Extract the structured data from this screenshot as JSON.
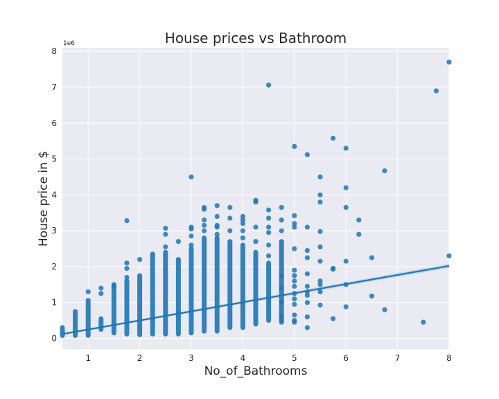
{
  "chart_data": {
    "type": "scatter",
    "title": "House prices vs Bathroom",
    "xlabel": "No_of_Bathrooms",
    "ylabel": "House price in $",
    "y_offset_label": "1e6",
    "xlim": [
      0.5,
      8
    ],
    "ylim": [
      -0.3,
      8.1
    ],
    "y_scale_note": "values in units of 1e6 dollars",
    "grid": true,
    "style": "seaborn darkgrid",
    "colors": {
      "points": "#1f77b4",
      "line": "#1f77b4",
      "background": "#eaeaf2",
      "grid": "#ffffff"
    },
    "xticks": [
      "1",
      "2",
      "3",
      "4",
      "5",
      "6",
      "7",
      "8"
    ],
    "yticks": [
      "0",
      "1",
      "2",
      "3",
      "4",
      "5",
      "6",
      "7",
      "8"
    ],
    "regression_line": {
      "x": [
        0.5,
        8
      ],
      "y": [
        0.12,
        2.02
      ]
    },
    "columns": [
      {
        "x": 0.5,
        "ymin": 0.08,
        "ymax": 0.3
      },
      {
        "x": 0.75,
        "ymin": 0.08,
        "ymax": 0.75
      },
      {
        "x": 1.0,
        "ymin": 0.08,
        "ymax": 1.06
      },
      {
        "x": 1.25,
        "ymin": 0.25,
        "ymax": 0.55
      },
      {
        "x": 1.5,
        "ymin": 0.15,
        "ymax": 1.5
      },
      {
        "x": 1.75,
        "ymin": 0.12,
        "ymax": 1.6
      },
      {
        "x": 2.0,
        "ymin": 0.1,
        "ymax": 1.75
      },
      {
        "x": 2.25,
        "ymin": 0.12,
        "ymax": 2.35
      },
      {
        "x": 2.5,
        "ymin": 0.12,
        "ymax": 2.4
      },
      {
        "x": 2.75,
        "ymin": 0.12,
        "ymax": 2.2
      },
      {
        "x": 3.0,
        "ymin": 0.15,
        "ymax": 2.5
      },
      {
        "x": 3.25,
        "ymin": 0.2,
        "ymax": 2.8
      },
      {
        "x": 3.5,
        "ymin": 0.2,
        "ymax": 2.8
      },
      {
        "x": 3.75,
        "ymin": 0.3,
        "ymax": 2.7
      },
      {
        "x": 4.0,
        "ymin": 0.3,
        "ymax": 2.6
      },
      {
        "x": 4.25,
        "ymin": 0.4,
        "ymax": 2.4
      },
      {
        "x": 4.5,
        "ymin": 0.5,
        "ymax": 2.1
      },
      {
        "x": 4.75,
        "ymin": 0.5,
        "ymax": 2.7
      }
    ],
    "points": [
      {
        "x": 1.0,
        "y": 1.3
      },
      {
        "x": 1.25,
        "y": 1.4
      },
      {
        "x": 1.25,
        "y": 1.25
      },
      {
        "x": 1.5,
        "y": 1.45
      },
      {
        "x": 1.75,
        "y": 3.28
      },
      {
        "x": 1.75,
        "y": 2.1
      },
      {
        "x": 1.75,
        "y": 1.95
      },
      {
        "x": 1.75,
        "y": 1.7
      },
      {
        "x": 2.0,
        "y": 2.2
      },
      {
        "x": 2.5,
        "y": 3.07
      },
      {
        "x": 2.5,
        "y": 2.9
      },
      {
        "x": 2.5,
        "y": 2.55
      },
      {
        "x": 2.75,
        "y": 2.7
      },
      {
        "x": 3.0,
        "y": 4.5
      },
      {
        "x": 3.0,
        "y": 3.1
      },
      {
        "x": 3.0,
        "y": 3.05
      },
      {
        "x": 3.0,
        "y": 2.85
      },
      {
        "x": 3.0,
        "y": 2.6
      },
      {
        "x": 3.25,
        "y": 3.65
      },
      {
        "x": 3.25,
        "y": 3.6
      },
      {
        "x": 3.25,
        "y": 3.3
      },
      {
        "x": 3.25,
        "y": 3.15
      },
      {
        "x": 3.25,
        "y": 3.0
      },
      {
        "x": 3.5,
        "y": 3.7
      },
      {
        "x": 3.5,
        "y": 3.4
      },
      {
        "x": 3.5,
        "y": 3.15
      },
      {
        "x": 3.5,
        "y": 3.1
      },
      {
        "x": 3.5,
        "y": 2.9
      },
      {
        "x": 3.75,
        "y": 3.65
      },
      {
        "x": 3.75,
        "y": 3.35
      },
      {
        "x": 3.75,
        "y": 3.0
      },
      {
        "x": 4.0,
        "y": 3.4
      },
      {
        "x": 4.0,
        "y": 3.3
      },
      {
        "x": 4.0,
        "y": 3.2
      },
      {
        "x": 4.0,
        "y": 3.0
      },
      {
        "x": 4.0,
        "y": 2.8
      },
      {
        "x": 4.25,
        "y": 3.85
      },
      {
        "x": 4.25,
        "y": 3.8
      },
      {
        "x": 4.25,
        "y": 3.1
      },
      {
        "x": 4.25,
        "y": 2.7
      },
      {
        "x": 4.5,
        "y": 7.06
      },
      {
        "x": 4.5,
        "y": 3.58
      },
      {
        "x": 4.5,
        "y": 3.35
      },
      {
        "x": 4.5,
        "y": 3.1
      },
      {
        "x": 4.5,
        "y": 2.95
      },
      {
        "x": 4.5,
        "y": 2.6
      },
      {
        "x": 4.5,
        "y": 2.3
      },
      {
        "x": 4.75,
        "y": 3.65
      },
      {
        "x": 4.75,
        "y": 3.3
      },
      {
        "x": 4.75,
        "y": 3.0
      },
      {
        "x": 4.75,
        "y": 1.75
      },
      {
        "x": 4.75,
        "y": 1.4
      },
      {
        "x": 4.75,
        "y": 1.0
      },
      {
        "x": 4.75,
        "y": 0.6
      },
      {
        "x": 4.75,
        "y": 0.45
      },
      {
        "x": 5.0,
        "y": 5.35
      },
      {
        "x": 5.0,
        "y": 3.42
      },
      {
        "x": 5.0,
        "y": 3.2
      },
      {
        "x": 5.0,
        "y": 3.1
      },
      {
        "x": 5.0,
        "y": 2.5
      },
      {
        "x": 5.0,
        "y": 1.9
      },
      {
        "x": 5.0,
        "y": 1.75
      },
      {
        "x": 5.0,
        "y": 1.6
      },
      {
        "x": 5.0,
        "y": 1.45
      },
      {
        "x": 5.0,
        "y": 1.25
      },
      {
        "x": 5.0,
        "y": 1.1
      },
      {
        "x": 5.0,
        "y": 0.95
      },
      {
        "x": 5.0,
        "y": 0.65
      },
      {
        "x": 5.0,
        "y": 0.5
      },
      {
        "x": 5.0,
        "y": 0.45
      },
      {
        "x": 5.25,
        "y": 5.12
      },
      {
        "x": 5.25,
        "y": 3.1
      },
      {
        "x": 5.25,
        "y": 2.45
      },
      {
        "x": 5.25,
        "y": 2.25
      },
      {
        "x": 5.25,
        "y": 1.8
      },
      {
        "x": 5.25,
        "y": 1.45
      },
      {
        "x": 5.25,
        "y": 1.3
      },
      {
        "x": 5.25,
        "y": 1.2
      },
      {
        "x": 5.25,
        "y": 1.0
      },
      {
        "x": 5.25,
        "y": 0.6
      },
      {
        "x": 5.25,
        "y": 0.3
      },
      {
        "x": 5.5,
        "y": 4.5
      },
      {
        "x": 5.5,
        "y": 4.0
      },
      {
        "x": 5.5,
        "y": 3.8
      },
      {
        "x": 5.5,
        "y": 2.98
      },
      {
        "x": 5.5,
        "y": 2.55
      },
      {
        "x": 5.5,
        "y": 2.15
      },
      {
        "x": 5.5,
        "y": 1.6
      },
      {
        "x": 5.5,
        "y": 1.5
      },
      {
        "x": 5.5,
        "y": 1.3
      },
      {
        "x": 5.5,
        "y": 0.93
      },
      {
        "x": 5.75,
        "y": 5.58
      },
      {
        "x": 5.75,
        "y": 1.95
      },
      {
        "x": 5.75,
        "y": 1.93
      },
      {
        "x": 5.75,
        "y": 0.55
      },
      {
        "x": 6.0,
        "y": 5.3
      },
      {
        "x": 6.0,
        "y": 4.2
      },
      {
        "x": 6.0,
        "y": 3.65
      },
      {
        "x": 6.0,
        "y": 2.15
      },
      {
        "x": 6.0,
        "y": 1.5
      },
      {
        "x": 6.0,
        "y": 0.88
      },
      {
        "x": 6.25,
        "y": 3.3
      },
      {
        "x": 6.25,
        "y": 2.9
      },
      {
        "x": 6.5,
        "y": 2.25
      },
      {
        "x": 6.5,
        "y": 1.18
      },
      {
        "x": 6.75,
        "y": 4.67
      },
      {
        "x": 6.75,
        "y": 0.8
      },
      {
        "x": 7.5,
        "y": 0.45
      },
      {
        "x": 7.75,
        "y": 6.9
      },
      {
        "x": 8.0,
        "y": 7.7
      },
      {
        "x": 8.0,
        "y": 2.3
      }
    ]
  }
}
